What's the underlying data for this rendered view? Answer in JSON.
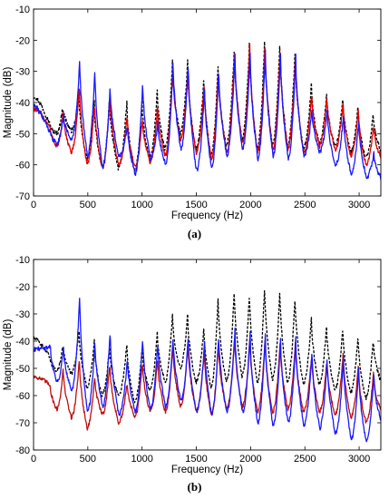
{
  "chart_data": [
    {
      "type": "line",
      "panel_label": "(a)",
      "xlabel": "Frequency (Hz)",
      "ylabel": "Magnitude (dB)",
      "xlim": [
        0,
        3200
      ],
      "ylim": [
        -70,
        -10
      ],
      "xticks": [
        0,
        500,
        1000,
        1500,
        2000,
        2500,
        3000
      ],
      "yticks": [
        -70,
        -60,
        -50,
        -40,
        -30,
        -20,
        -10
      ],
      "grid": false,
      "legend": "none",
      "harmonics_hz": [
        150,
        270,
        420,
        560,
        700,
        860,
        1000,
        1140,
        1280,
        1420,
        1570,
        1700,
        1850,
        1990,
        2130,
        2270,
        2410,
        2560,
        2700,
        2850,
        2990,
        3130
      ],
      "series": [
        {
          "color": "#000000",
          "style": "dashed",
          "peaks": [
            -47,
            -41,
            -38,
            -40,
            -39,
            -40,
            -40,
            -36,
            -27,
            -27,
            -32,
            -28,
            -22,
            -20,
            -19,
            -20,
            -23,
            -34,
            -37,
            -38,
            -41,
            -43
          ],
          "troughs": [
            -50,
            -49,
            -58,
            -61,
            -61,
            -62,
            -58,
            -55,
            -50,
            -55,
            -57,
            -54,
            -52,
            -55,
            -54,
            -54,
            -55,
            -53,
            -54,
            -56,
            -58,
            -61
          ]
        },
        {
          "color": "#e00000",
          "style": "solid",
          "peaks": [
            -48,
            -43,
            -34,
            -40,
            -37,
            -44,
            -45,
            -41,
            -29,
            -29,
            -34,
            -29,
            -23,
            -21,
            -21,
            -23,
            -25,
            -37,
            -38,
            -40,
            -42,
            -47
          ],
          "troughs": [
            -54,
            -56,
            -60,
            -61,
            -60,
            -61,
            -59,
            -57,
            -52,
            -56,
            -58,
            -56,
            -53,
            -56,
            -55,
            -55,
            -56,
            -54,
            -55,
            -57,
            -60,
            -62
          ]
        },
        {
          "color": "#1a1aff",
          "style": "solid",
          "peaks": [
            -50,
            -44,
            -26,
            -29,
            -35,
            -47,
            -33,
            -46,
            -26,
            -27,
            -35,
            -29,
            -25,
            -24,
            -23,
            -24,
            -25,
            -42,
            -42,
            -44,
            -46,
            -56
          ],
          "troughs": [
            -53,
            -52,
            -57,
            -61,
            -57,
            -63,
            -58,
            -60,
            -55,
            -62,
            -61,
            -57,
            -55,
            -58,
            -57,
            -58,
            -57,
            -56,
            -60,
            -63,
            -64,
            -68
          ]
        }
      ]
    },
    {
      "type": "line",
      "panel_label": "(b)",
      "xlabel": "Frequency (Hz)",
      "ylabel": "Magnitude (dB)",
      "xlim": [
        0,
        3200
      ],
      "ylim": [
        -80,
        -10
      ],
      "xticks": [
        0,
        500,
        1000,
        1500,
        2000,
        2500,
        3000
      ],
      "yticks": [
        -80,
        -70,
        -60,
        -50,
        -40,
        -30,
        -20,
        -10
      ],
      "grid": false,
      "legend": "none",
      "harmonics_hz": [
        150,
        270,
        420,
        560,
        700,
        860,
        1000,
        1140,
        1280,
        1420,
        1570,
        1700,
        1850,
        1990,
        2130,
        2270,
        2410,
        2560,
        2700,
        2850,
        2990,
        3130
      ],
      "series": [
        {
          "color": "#000000",
          "style": "dashed",
          "peaks": [
            -46,
            -41,
            -36,
            -40,
            -42,
            -41,
            -43,
            -37,
            -30,
            -30,
            -35,
            -24,
            -21,
            -22,
            -19,
            -21,
            -23,
            -31,
            -34,
            -35,
            -38,
            -39
          ],
          "troughs": [
            -51,
            -52,
            -57,
            -60,
            -60,
            -62,
            -58,
            -55,
            -50,
            -55,
            -57,
            -55,
            -53,
            -55,
            -54,
            -55,
            -56,
            -56,
            -58,
            -59,
            -61,
            -61
          ]
        },
        {
          "color": "#c01010",
          "style": "solid",
          "peaks": [
            -56,
            -50,
            -46,
            -53,
            -48,
            -55,
            -47,
            -46,
            -41,
            -40,
            -43,
            -40,
            -38,
            -39,
            -39,
            -40,
            -40,
            -45,
            -47,
            -44,
            -49,
            -51
          ],
          "troughs": [
            -65,
            -68,
            -72,
            -67,
            -70,
            -68,
            -66,
            -66,
            -64,
            -66,
            -67,
            -65,
            -64,
            -66,
            -66,
            -65,
            -66,
            -66,
            -67,
            -68,
            -70,
            -72
          ]
        },
        {
          "color": "#1a1aff",
          "style": "solid",
          "peaks": [
            -42,
            -42,
            -23,
            -40,
            -36,
            -46,
            -38,
            -40,
            -38,
            -38,
            -40,
            -37,
            -36,
            -37,
            -37,
            -39,
            -39,
            -43,
            -46,
            -46,
            -50,
            -52
          ],
          "troughs": [
            -55,
            -58,
            -66,
            -64,
            -67,
            -66,
            -65,
            -64,
            -62,
            -66,
            -67,
            -66,
            -66,
            -70,
            -71,
            -70,
            -71,
            -72,
            -74,
            -76,
            -77,
            -77
          ]
        }
      ]
    }
  ]
}
